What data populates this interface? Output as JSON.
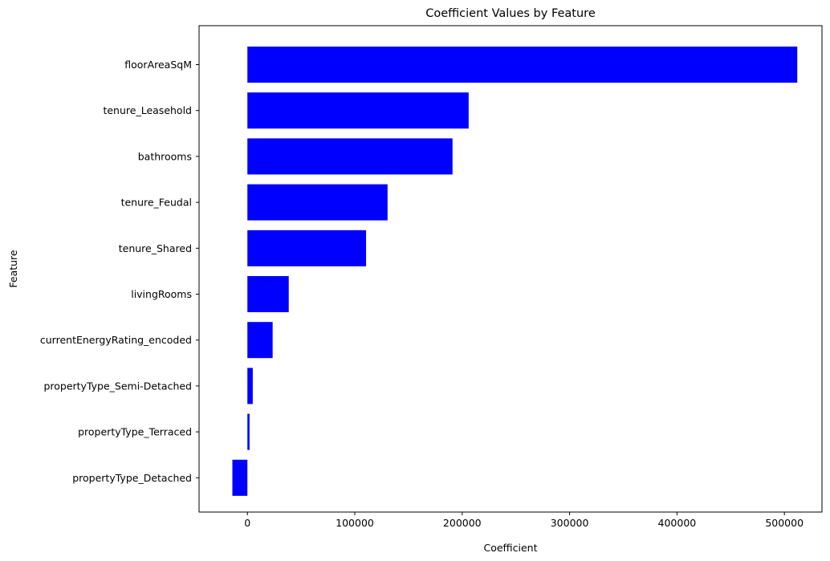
{
  "chart_data": {
    "type": "bar",
    "orientation": "horizontal",
    "title": "Coefficient Values by Feature",
    "xlabel": "Coefficient",
    "ylabel": "Feature",
    "categories": [
      "floorAreaSqM",
      "tenure_Leasehold",
      "bathrooms",
      "tenure_Feudal",
      "tenure_Shared",
      "livingRooms",
      "currentEnergyRating_encoded",
      "propertyType_Semi-Detached",
      "propertyType_Terraced",
      "propertyType_Detached"
    ],
    "values": [
      512000,
      206000,
      191000,
      130500,
      110500,
      38500,
      23500,
      5000,
      2000,
      -14000
    ],
    "xlim": [
      -45000,
      535000
    ],
    "xticks": [
      0,
      100000,
      200000,
      300000,
      400000,
      500000
    ],
    "xtick_labels": [
      "0",
      "100000",
      "200000",
      "300000",
      "400000",
      "500000"
    ],
    "bar_color": "#0000ff",
    "grid": false,
    "legend": "none"
  }
}
